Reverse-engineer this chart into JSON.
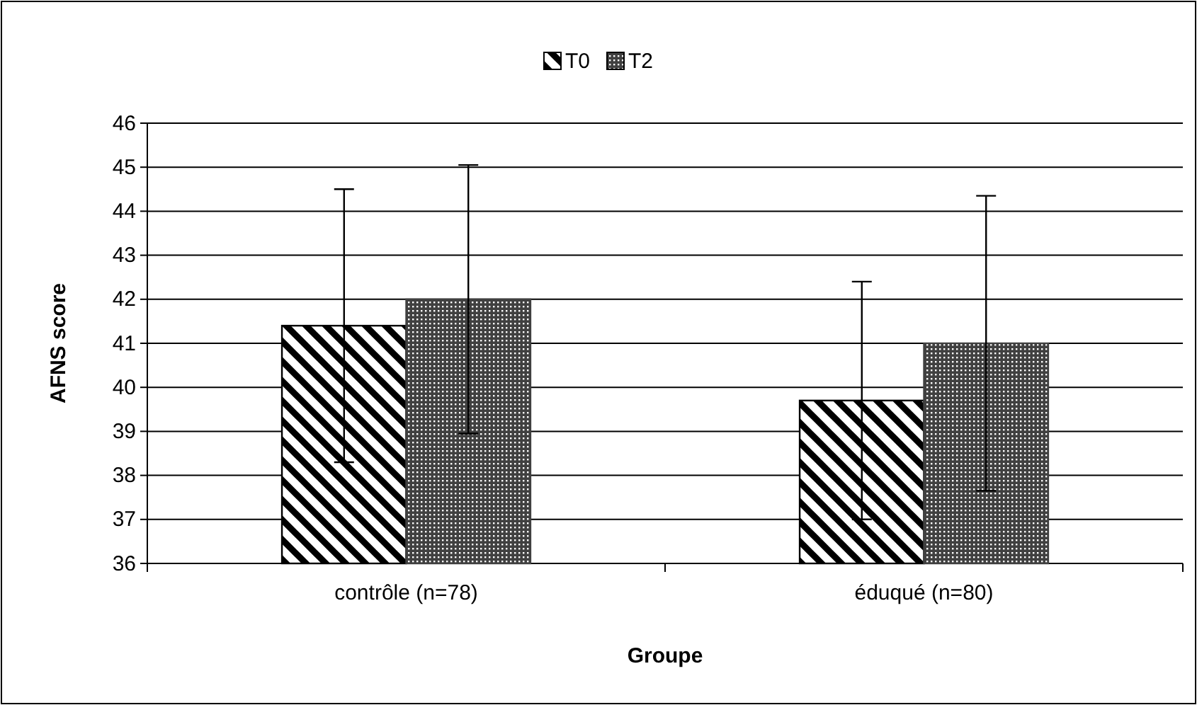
{
  "chart_data": {
    "type": "bar",
    "xlabel": "Groupe",
    "ylabel": "AFNS score",
    "categories": [
      "contrôle (n=78)",
      "éduqué (n=80)"
    ],
    "series": [
      {
        "name": "T0",
        "color": "#000000",
        "values": [
          41.4,
          39.7
        ],
        "errors": [
          3.1,
          2.7
        ]
      },
      {
        "name": "T2",
        "color": "#404040",
        "values": [
          42.0,
          41.0
        ],
        "errors": [
          3.05,
          3.35
        ]
      }
    ],
    "ylim": [
      36,
      46
    ],
    "yticks": [
      36,
      37,
      38,
      39,
      40,
      41,
      42,
      43,
      44,
      45,
      46
    ],
    "grid": "y",
    "legend": "top"
  }
}
